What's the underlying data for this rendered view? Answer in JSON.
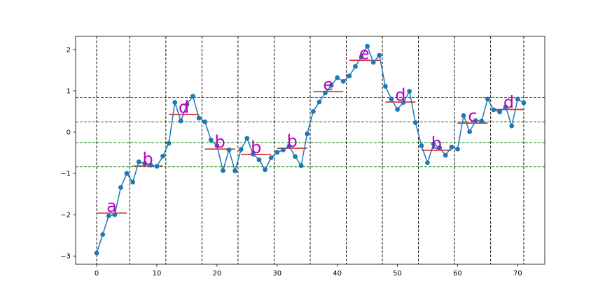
{
  "chart_data": {
    "type": "line",
    "title": "",
    "xlabel": "",
    "ylabel": "",
    "xlim": [
      -3.5,
      74.5
    ],
    "ylim": [
      -3.2,
      2.32
    ],
    "xticks": [
      0,
      10,
      20,
      30,
      40,
      50,
      60,
      70
    ],
    "yticks": [
      -3,
      -2,
      -1,
      0,
      1,
      2
    ],
    "grid": false,
    "colors": {
      "series": "#1f77b4",
      "segment_mean": "#d62728",
      "segment_label": "#bf00bf",
      "boundary": "#000000",
      "threshold": "#008000"
    },
    "series": [
      {
        "marker": "circle",
        "x": [
          0,
          1,
          2,
          3,
          4,
          5,
          6,
          7,
          8,
          9,
          10,
          11,
          12,
          13,
          14,
          15,
          16,
          17,
          18,
          19,
          20,
          21,
          22,
          23,
          24,
          25,
          26,
          27,
          28,
          29,
          30,
          31,
          32,
          33,
          34,
          35,
          36,
          37,
          38,
          39,
          40,
          41,
          42,
          43,
          44,
          45,
          46,
          47,
          48,
          49,
          50,
          51,
          52,
          53,
          54,
          55,
          56,
          57,
          58,
          59,
          60,
          61,
          62,
          63,
          64,
          65,
          66,
          67,
          68,
          69,
          70,
          71
        ],
        "y": [
          -2.93,
          -2.48,
          -2.03,
          -2.0,
          -1.34,
          -1.0,
          -1.21,
          -0.72,
          -0.76,
          -0.8,
          -0.83,
          -0.58,
          -0.27,
          0.72,
          0.27,
          0.67,
          0.87,
          0.34,
          0.25,
          -0.19,
          -0.33,
          -0.93,
          -0.43,
          -0.94,
          -0.42,
          -0.15,
          -0.53,
          -0.67,
          -0.91,
          -0.62,
          -0.49,
          -0.43,
          -0.34,
          -0.59,
          -0.81,
          -0.04,
          0.5,
          0.73,
          0.95,
          1.13,
          1.32,
          1.23,
          1.36,
          1.59,
          1.82,
          2.08,
          1.69,
          1.86,
          1.11,
          0.8,
          0.55,
          0.72,
          0.99,
          0.23,
          -0.33,
          -0.74,
          -0.29,
          -0.38,
          -0.56,
          -0.36,
          -0.41,
          0.4,
          0.01,
          0.28,
          0.27,
          0.8,
          0.54,
          0.49,
          0.61,
          0.15,
          0.8,
          0.71
        ]
      }
    ],
    "boundaries": [
      0,
      5.5,
      11.5,
      17.5,
      23.5,
      29.5,
      35.5,
      41.5,
      47.5,
      53.5,
      59.5,
      65.5,
      71
    ],
    "thresholds": [
      -0.84,
      -0.25,
      0.25,
      0.84
    ],
    "segments": [
      {
        "x0": 0,
        "x1": 5,
        "mean": -1.96,
        "label": "a"
      },
      {
        "x0": 6,
        "x1": 11,
        "mean": -0.82,
        "label": "b"
      },
      {
        "x0": 12,
        "x1": 17,
        "mean": 0.43,
        "label": "d"
      },
      {
        "x0": 18,
        "x1": 23,
        "mean": -0.41,
        "label": "b"
      },
      {
        "x0": 24,
        "x1": 29,
        "mean": -0.54,
        "label": "b"
      },
      {
        "x0": 30,
        "x1": 35,
        "mean": -0.39,
        "label": "b"
      },
      {
        "x0": 36,
        "x1": 41,
        "mean": 0.98,
        "label": "e"
      },
      {
        "x0": 42,
        "x1": 47,
        "mean": 1.74,
        "label": "e"
      },
      {
        "x0": 48,
        "x1": 53,
        "mean": 0.73,
        "label": "d"
      },
      {
        "x0": 54,
        "x1": 59,
        "mean": -0.44,
        "label": "b"
      },
      {
        "x0": 60,
        "x1": 65,
        "mean": 0.22,
        "label": "c"
      },
      {
        "x0": 66,
        "x1": 71,
        "mean": 0.55,
        "label": "d"
      }
    ]
  }
}
